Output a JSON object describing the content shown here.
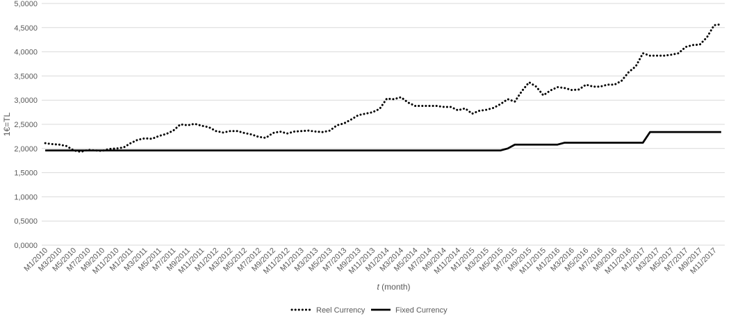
{
  "chart_data": {
    "type": "line",
    "xlabel_italic": "t",
    "xlabel_rest": " (month)",
    "ylabel": "1€=TL",
    "ylim": [
      0,
      5
    ],
    "y_ticks": [
      "0,0000",
      "0,5000",
      "1,0000",
      "1,5000",
      "2,0000",
      "2,5000",
      "3,0000",
      "3,5000",
      "4,0000",
      "4,5000",
      "5,0000"
    ],
    "x": [
      "M1/2010",
      "M2/2010",
      "M3/2010",
      "M4/2010",
      "M5/2010",
      "M6/2010",
      "M7/2010",
      "M8/2010",
      "M9/2010",
      "M10/2010",
      "M11/2010",
      "M12/2010",
      "M1/2011",
      "M2/2011",
      "M3/2011",
      "M4/2011",
      "M5/2011",
      "M6/2011",
      "M7/2011",
      "M8/2011",
      "M9/2011",
      "M10/2011",
      "M11/2011",
      "M12/2011",
      "M1/2012",
      "M2/2012",
      "M3/2012",
      "M4/2012",
      "M5/2012",
      "M6/2012",
      "M7/2012",
      "M8/2012",
      "M9/2012",
      "M10/2012",
      "M11/2012",
      "M12/2012",
      "M1/2013",
      "M2/2013",
      "M3/2013",
      "M4/2013",
      "M5/2013",
      "M6/2013",
      "M7/2013",
      "M8/2013",
      "M9/2013",
      "M10/2013",
      "M11/2013",
      "M12/2013",
      "M1/2014",
      "M2/2014",
      "M3/2014",
      "M4/2014",
      "M5/2014",
      "M6/2014",
      "M7/2014",
      "M8/2014",
      "M9/2014",
      "M10/2014",
      "M11/2014",
      "M12/2014",
      "M1/2015",
      "M2/2015",
      "M3/2015",
      "M4/2015",
      "M5/2015",
      "M6/2015",
      "M7/2015",
      "M8/2015",
      "M9/2015",
      "M10/2015",
      "M11/2015",
      "M12/2015",
      "M1/2016",
      "M2/2016",
      "M3/2016",
      "M4/2016",
      "M5/2016",
      "M6/2016",
      "M7/2016",
      "M8/2016",
      "M9/2016",
      "M10/2016",
      "M11/2016",
      "M12/2016",
      "M1/2017",
      "M2/2017",
      "M3/2017",
      "M4/2017",
      "M5/2017",
      "M6/2017",
      "M7/2017",
      "M8/2017",
      "M9/2017",
      "M10/2017",
      "M11/2017",
      "M12/2017"
    ],
    "x_tick_labels": [
      "M1/2010",
      "M3/2010",
      "M5/2010",
      "M7/2010",
      "M9/2010",
      "M11/2010",
      "M1/2011",
      "M3/2011",
      "M5/2011",
      "M7/2011",
      "M9/2011",
      "M11/2011",
      "M1/2012",
      "M3/2012",
      "M5/2012",
      "M7/2012",
      "M9/2012",
      "M11/2012",
      "M1/2013",
      "M3/2013",
      "M5/2013",
      "M7/2013",
      "M9/2013",
      "M11/2013",
      "M1/2014",
      "M3/2014",
      "M5/2014",
      "M7/2014",
      "M9/2014",
      "M11/2014",
      "M1/2015",
      "M3/2015",
      "M5/2015",
      "M7/2015",
      "M9/2015",
      "M11/2015",
      "M1/2016",
      "M3/2016",
      "M5/2016",
      "M7/2016",
      "M9/2016",
      "M11/2016",
      "M1/2017",
      "M3/2017",
      "M5/2017",
      "M7/2017",
      "M9/2017",
      "M11/2017"
    ],
    "series": [
      {
        "name": "Reel Currency",
        "style": "dotted",
        "color": "#000000",
        "values": [
          2.11,
          2.09,
          2.08,
          2.05,
          1.96,
          1.93,
          1.97,
          1.96,
          1.95,
          1.99,
          2.0,
          2.02,
          2.11,
          2.18,
          2.21,
          2.2,
          2.26,
          2.3,
          2.37,
          2.5,
          2.48,
          2.51,
          2.47,
          2.44,
          2.36,
          2.33,
          2.36,
          2.36,
          2.32,
          2.29,
          2.24,
          2.22,
          2.32,
          2.35,
          2.31,
          2.35,
          2.36,
          2.37,
          2.35,
          2.34,
          2.37,
          2.48,
          2.52,
          2.6,
          2.69,
          2.72,
          2.75,
          2.82,
          3.03,
          3.02,
          3.06,
          2.95,
          2.88,
          2.88,
          2.88,
          2.88,
          2.86,
          2.86,
          2.79,
          2.83,
          2.72,
          2.78,
          2.8,
          2.84,
          2.92,
          3.02,
          2.97,
          3.19,
          3.37,
          3.28,
          3.1,
          3.2,
          3.27,
          3.25,
          3.21,
          3.22,
          3.32,
          3.28,
          3.28,
          3.32,
          3.32,
          3.4,
          3.58,
          3.7,
          3.97,
          3.92,
          3.92,
          3.92,
          3.94,
          3.97,
          4.1,
          4.14,
          4.15,
          4.3,
          4.55,
          4.57
        ]
      },
      {
        "name": "Fixed Currency",
        "style": "solid",
        "color": "#000000",
        "values": [
          1.96,
          1.96,
          1.96,
          1.96,
          1.96,
          1.96,
          1.96,
          1.96,
          1.96,
          1.96,
          1.96,
          1.96,
          1.96,
          1.96,
          1.96,
          1.96,
          1.96,
          1.96,
          1.96,
          1.96,
          1.96,
          1.96,
          1.96,
          1.96,
          1.96,
          1.96,
          1.96,
          1.96,
          1.96,
          1.96,
          1.96,
          1.96,
          1.96,
          1.96,
          1.96,
          1.96,
          1.96,
          1.96,
          1.96,
          1.96,
          1.96,
          1.96,
          1.96,
          1.96,
          1.96,
          1.96,
          1.96,
          1.96,
          1.96,
          1.96,
          1.96,
          1.96,
          1.96,
          1.96,
          1.96,
          1.96,
          1.96,
          1.96,
          1.96,
          1.96,
          1.96,
          1.96,
          1.96,
          1.96,
          1.96,
          2.0,
          2.08,
          2.08,
          2.08,
          2.08,
          2.08,
          2.08,
          2.08,
          2.12,
          2.12,
          2.12,
          2.12,
          2.12,
          2.12,
          2.12,
          2.12,
          2.12,
          2.12,
          2.12,
          2.12,
          2.34,
          2.34,
          2.34,
          2.34,
          2.34,
          2.34,
          2.34,
          2.34,
          2.34,
          2.34,
          2.34
        ]
      }
    ],
    "grid": "horizontal",
    "legend_position": "bottom-center",
    "gridline_color": "#d9d9d9",
    "text_color": "#595959"
  }
}
